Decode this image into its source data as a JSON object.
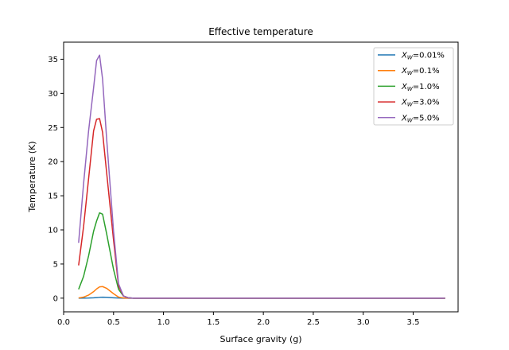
{
  "chart_data": {
    "type": "line",
    "title": "Effective temperature",
    "xlabel": "Surface gravity (g)",
    "ylabel": "Temperature (K)",
    "xlim": [
      0.0,
      3.95
    ],
    "ylim": [
      -2,
      37.5
    ],
    "xticks": [
      0.0,
      0.5,
      1.0,
      1.5,
      2.0,
      2.5,
      3.0,
      3.5
    ],
    "xtick_labels": [
      "0.0",
      "0.5",
      "1.0",
      "1.5",
      "2.0",
      "2.5",
      "3.0",
      "3.5"
    ],
    "yticks": [
      0,
      5,
      10,
      15,
      20,
      25,
      30,
      35
    ],
    "ytick_labels": [
      "0",
      "5",
      "10",
      "15",
      "20",
      "25",
      "30",
      "35"
    ],
    "grid": false,
    "legend_position": "top-right",
    "x": [
      0.15,
      0.2,
      0.25,
      0.3,
      0.33,
      0.36,
      0.39,
      0.43,
      0.5,
      0.55,
      0.6,
      0.65,
      0.7,
      1.0,
      1.5,
      2.0,
      2.5,
      3.0,
      3.5,
      3.82
    ],
    "series": [
      {
        "name": "X_W=0.01%",
        "legend_main": "X",
        "legend_sub": "W",
        "legend_suffix": "=0.01%",
        "color": "#1f77b4",
        "values": [
          0.0,
          0.01,
          0.02,
          0.05,
          0.08,
          0.12,
          0.14,
          0.12,
          0.06,
          0.02,
          0.0,
          0.0,
          0.0,
          0.0,
          0.0,
          0.0,
          0.0,
          0.0,
          0.0,
          0.0
        ]
      },
      {
        "name": "X_W=0.1%",
        "legend_main": "X",
        "legend_sub": "W",
        "legend_suffix": "=0.1%",
        "color": "#ff7f0e",
        "values": [
          0.02,
          0.15,
          0.45,
          0.95,
          1.35,
          1.65,
          1.7,
          1.45,
          0.65,
          0.15,
          0.02,
          0.0,
          0.0,
          0.0,
          0.0,
          0.0,
          0.0,
          0.0,
          0.0,
          0.0
        ]
      },
      {
        "name": "X_W=1.0%",
        "legend_main": "X",
        "legend_sub": "W",
        "legend_suffix": "=1.0%",
        "color": "#2ca02c",
        "values": [
          1.3,
          3.2,
          6.2,
          9.8,
          11.3,
          12.5,
          12.3,
          9.5,
          4.2,
          1.3,
          0.3,
          0.05,
          0.0,
          0.0,
          0.0,
          0.0,
          0.0,
          0.0,
          0.0,
          0.0
        ]
      },
      {
        "name": "X_W=3.0%",
        "legend_main": "X",
        "legend_sub": "W",
        "legend_suffix": "=3.0%",
        "color": "#d62728",
        "values": [
          4.8,
          10.5,
          17.5,
          24.5,
          26.2,
          26.3,
          24.3,
          18.5,
          8.5,
          1.8,
          0.3,
          0.05,
          0.0,
          0.0,
          0.0,
          0.0,
          0.0,
          0.0,
          0.0,
          0.0
        ]
      },
      {
        "name": "X_W=5.0%",
        "legend_main": "X",
        "legend_sub": "W",
        "legend_suffix": "=5.0%",
        "color": "#9467bd",
        "values": [
          8.1,
          16.8,
          24.5,
          30.8,
          34.8,
          35.6,
          32.1,
          23.5,
          9.8,
          2.1,
          0.3,
          0.05,
          0.0,
          0.0,
          0.0,
          0.0,
          0.0,
          0.0,
          0.0,
          0.0
        ]
      }
    ]
  }
}
